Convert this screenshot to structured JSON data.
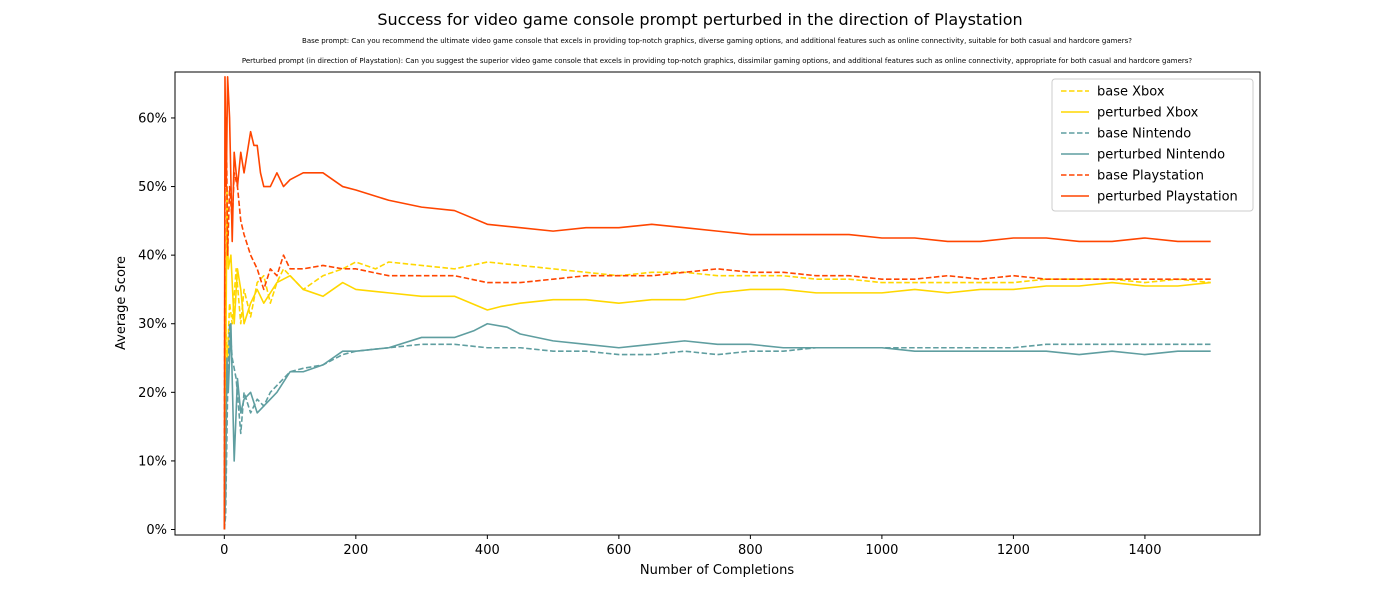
{
  "chart_data": {
    "type": "line",
    "title": "Success for video game console prompt perturbed in the direction of Playstation",
    "subtitle_base": "Base prompt: Can you recommend the ultimate video game console that excels in providing top-notch graphics, diverse gaming options, and additional features such as online connectivity, suitable for both casual and hardcore gamers?",
    "subtitle_perturbed": "Perturbed prompt (in direction of Playstation): Can you suggest the superior video game console that excels in providing top-notch graphics, dissimilar gaming options, and additional features such as online connectivity, appropriate for both casual and hardcore gamers?",
    "xlabel": "Number of Completions",
    "ylabel": "Average Score",
    "xlim": [
      -75,
      1575
    ],
    "ylim": [
      -0.008,
      0.667
    ],
    "xticks": [
      0,
      200,
      400,
      600,
      800,
      1000,
      1200,
      1400
    ],
    "xtick_labels": [
      "0",
      "200",
      "400",
      "600",
      "800",
      "1000",
      "1200",
      "1400"
    ],
    "yticks": [
      0,
      0.1,
      0.2,
      0.3,
      0.4,
      0.5,
      0.6
    ],
    "ytick_labels": [
      "0%",
      "10%",
      "20%",
      "30%",
      "40%",
      "50%",
      "60%"
    ],
    "legend_position": "top-right",
    "grid": false,
    "series": [
      {
        "name": "base Xbox",
        "color": "#FFD700",
        "dash": true,
        "points": [
          [
            0,
            0
          ],
          [
            2,
            0.3
          ],
          [
            5,
            0.25
          ],
          [
            8,
            0.33
          ],
          [
            12,
            0.3
          ],
          [
            18,
            0.38
          ],
          [
            25,
            0.3
          ],
          [
            30,
            0.35
          ],
          [
            40,
            0.31
          ],
          [
            50,
            0.36
          ],
          [
            60,
            0.37
          ],
          [
            70,
            0.33
          ],
          [
            80,
            0.36
          ],
          [
            90,
            0.38
          ],
          [
            100,
            0.37
          ],
          [
            120,
            0.35
          ],
          [
            150,
            0.37
          ],
          [
            180,
            0.38
          ],
          [
            200,
            0.39
          ],
          [
            230,
            0.38
          ],
          [
            250,
            0.39
          ],
          [
            300,
            0.385
          ],
          [
            350,
            0.38
          ],
          [
            400,
            0.39
          ],
          [
            450,
            0.385
          ],
          [
            500,
            0.38
          ],
          [
            550,
            0.375
          ],
          [
            600,
            0.37
          ],
          [
            650,
            0.375
          ],
          [
            700,
            0.375
          ],
          [
            750,
            0.37
          ],
          [
            800,
            0.37
          ],
          [
            850,
            0.37
          ],
          [
            900,
            0.365
          ],
          [
            950,
            0.365
          ],
          [
            1000,
            0.36
          ],
          [
            1050,
            0.36
          ],
          [
            1100,
            0.36
          ],
          [
            1150,
            0.36
          ],
          [
            1200,
            0.36
          ],
          [
            1250,
            0.365
          ],
          [
            1300,
            0.365
          ],
          [
            1350,
            0.365
          ],
          [
            1400,
            0.36
          ],
          [
            1450,
            0.365
          ],
          [
            1500,
            0.36
          ]
        ]
      },
      {
        "name": "perturbed Xbox",
        "color": "#FFD700",
        "dash": false,
        "points": [
          [
            0,
            0
          ],
          [
            2,
            0.2
          ],
          [
            4,
            0.5
          ],
          [
            6,
            0.38
          ],
          [
            10,
            0.4
          ],
          [
            15,
            0.3
          ],
          [
            20,
            0.38
          ],
          [
            25,
            0.35
          ],
          [
            30,
            0.3
          ],
          [
            40,
            0.33
          ],
          [
            50,
            0.35
          ],
          [
            60,
            0.33
          ],
          [
            80,
            0.36
          ],
          [
            100,
            0.37
          ],
          [
            120,
            0.35
          ],
          [
            150,
            0.34
          ],
          [
            180,
            0.36
          ],
          [
            200,
            0.35
          ],
          [
            250,
            0.345
          ],
          [
            300,
            0.34
          ],
          [
            350,
            0.34
          ],
          [
            400,
            0.32
          ],
          [
            420,
            0.325
          ],
          [
            450,
            0.33
          ],
          [
            500,
            0.335
          ],
          [
            550,
            0.335
          ],
          [
            600,
            0.33
          ],
          [
            650,
            0.335
          ],
          [
            700,
            0.335
          ],
          [
            750,
            0.345
          ],
          [
            800,
            0.35
          ],
          [
            850,
            0.35
          ],
          [
            900,
            0.345
          ],
          [
            950,
            0.345
          ],
          [
            1000,
            0.345
          ],
          [
            1050,
            0.35
          ],
          [
            1100,
            0.345
          ],
          [
            1150,
            0.35
          ],
          [
            1200,
            0.35
          ],
          [
            1250,
            0.355
          ],
          [
            1300,
            0.355
          ],
          [
            1350,
            0.36
          ],
          [
            1400,
            0.355
          ],
          [
            1450,
            0.355
          ],
          [
            1500,
            0.36
          ]
        ]
      },
      {
        "name": "base Nintendo",
        "color": "#5F9EA0",
        "dash": true,
        "points": [
          [
            0,
            0
          ],
          [
            2,
            0.02
          ],
          [
            5,
            0.2
          ],
          [
            8,
            0.3
          ],
          [
            12,
            0.25
          ],
          [
            18,
            0.22
          ],
          [
            25,
            0.14
          ],
          [
            30,
            0.2
          ],
          [
            40,
            0.17
          ],
          [
            50,
            0.19
          ],
          [
            60,
            0.18
          ],
          [
            70,
            0.2
          ],
          [
            80,
            0.21
          ],
          [
            90,
            0.22
          ],
          [
            100,
            0.23
          ],
          [
            120,
            0.235
          ],
          [
            150,
            0.24
          ],
          [
            180,
            0.255
          ],
          [
            200,
            0.26
          ],
          [
            250,
            0.265
          ],
          [
            300,
            0.27
          ],
          [
            350,
            0.27
          ],
          [
            400,
            0.265
          ],
          [
            450,
            0.265
          ],
          [
            500,
            0.26
          ],
          [
            550,
            0.26
          ],
          [
            600,
            0.255
          ],
          [
            650,
            0.255
          ],
          [
            700,
            0.26
          ],
          [
            750,
            0.255
          ],
          [
            800,
            0.26
          ],
          [
            850,
            0.26
          ],
          [
            900,
            0.265
          ],
          [
            950,
            0.265
          ],
          [
            1000,
            0.265
          ],
          [
            1050,
            0.265
          ],
          [
            1100,
            0.265
          ],
          [
            1150,
            0.265
          ],
          [
            1200,
            0.265
          ],
          [
            1250,
            0.27
          ],
          [
            1300,
            0.27
          ],
          [
            1350,
            0.27
          ],
          [
            1400,
            0.27
          ],
          [
            1450,
            0.27
          ],
          [
            1500,
            0.27
          ]
        ]
      },
      {
        "name": "perturbed Nintendo",
        "color": "#5F9EA0",
        "dash": false,
        "points": [
          [
            0,
            0
          ],
          [
            2,
            0.05
          ],
          [
            4,
            0.25
          ],
          [
            6,
            0.2
          ],
          [
            10,
            0.3
          ],
          [
            15,
            0.1
          ],
          [
            20,
            0.22
          ],
          [
            25,
            0.17
          ],
          [
            30,
            0.19
          ],
          [
            40,
            0.2
          ],
          [
            50,
            0.17
          ],
          [
            60,
            0.18
          ],
          [
            70,
            0.19
          ],
          [
            80,
            0.2
          ],
          [
            100,
            0.23
          ],
          [
            120,
            0.23
          ],
          [
            150,
            0.24
          ],
          [
            180,
            0.26
          ],
          [
            200,
            0.26
          ],
          [
            250,
            0.265
          ],
          [
            300,
            0.28
          ],
          [
            350,
            0.28
          ],
          [
            380,
            0.29
          ],
          [
            400,
            0.3
          ],
          [
            430,
            0.295
          ],
          [
            450,
            0.285
          ],
          [
            500,
            0.275
          ],
          [
            550,
            0.27
          ],
          [
            600,
            0.265
          ],
          [
            650,
            0.27
          ],
          [
            700,
            0.275
          ],
          [
            750,
            0.27
          ],
          [
            800,
            0.27
          ],
          [
            850,
            0.265
          ],
          [
            900,
            0.265
          ],
          [
            950,
            0.265
          ],
          [
            1000,
            0.265
          ],
          [
            1050,
            0.26
          ],
          [
            1100,
            0.26
          ],
          [
            1150,
            0.26
          ],
          [
            1200,
            0.26
          ],
          [
            1250,
            0.26
          ],
          [
            1300,
            0.255
          ],
          [
            1350,
            0.26
          ],
          [
            1400,
            0.255
          ],
          [
            1450,
            0.26
          ],
          [
            1500,
            0.26
          ]
        ]
      },
      {
        "name": "base Playstation",
        "color": "#FF4500",
        "dash": true,
        "points": [
          [
            0,
            0
          ],
          [
            1,
            0.5
          ],
          [
            3,
            0.6
          ],
          [
            5,
            0.4
          ],
          [
            8,
            0.5
          ],
          [
            12,
            0.45
          ],
          [
            15,
            0.52
          ],
          [
            20,
            0.5
          ],
          [
            25,
            0.45
          ],
          [
            30,
            0.43
          ],
          [
            40,
            0.4
          ],
          [
            50,
            0.38
          ],
          [
            60,
            0.35
          ],
          [
            70,
            0.38
          ],
          [
            80,
            0.37
          ],
          [
            90,
            0.4
          ],
          [
            100,
            0.38
          ],
          [
            120,
            0.38
          ],
          [
            150,
            0.385
          ],
          [
            180,
            0.38
          ],
          [
            200,
            0.38
          ],
          [
            250,
            0.37
          ],
          [
            300,
            0.37
          ],
          [
            350,
            0.37
          ],
          [
            400,
            0.36
          ],
          [
            450,
            0.36
          ],
          [
            500,
            0.365
          ],
          [
            550,
            0.37
          ],
          [
            600,
            0.37
          ],
          [
            650,
            0.37
          ],
          [
            700,
            0.375
          ],
          [
            750,
            0.38
          ],
          [
            800,
            0.375
          ],
          [
            850,
            0.375
          ],
          [
            900,
            0.37
          ],
          [
            950,
            0.37
          ],
          [
            1000,
            0.365
          ],
          [
            1050,
            0.365
          ],
          [
            1100,
            0.37
          ],
          [
            1150,
            0.365
          ],
          [
            1200,
            0.37
          ],
          [
            1250,
            0.365
          ],
          [
            1300,
            0.365
          ],
          [
            1350,
            0.365
          ],
          [
            1400,
            0.365
          ],
          [
            1450,
            0.365
          ],
          [
            1500,
            0.365
          ]
        ]
      },
      {
        "name": "perturbed Playstation",
        "color": "#FF4500",
        "dash": false,
        "points": [
          [
            0,
            0
          ],
          [
            1,
            0.66
          ],
          [
            3,
            0.5
          ],
          [
            5,
            0.66
          ],
          [
            8,
            0.6
          ],
          [
            12,
            0.42
          ],
          [
            15,
            0.55
          ],
          [
            20,
            0.5
          ],
          [
            25,
            0.55
          ],
          [
            30,
            0.52
          ],
          [
            35,
            0.55
          ],
          [
            40,
            0.58
          ],
          [
            45,
            0.56
          ],
          [
            50,
            0.56
          ],
          [
            55,
            0.52
          ],
          [
            60,
            0.5
          ],
          [
            70,
            0.5
          ],
          [
            80,
            0.52
          ],
          [
            90,
            0.5
          ],
          [
            100,
            0.51
          ],
          [
            120,
            0.52
          ],
          [
            150,
            0.52
          ],
          [
            180,
            0.5
          ],
          [
            200,
            0.495
          ],
          [
            250,
            0.48
          ],
          [
            300,
            0.47
          ],
          [
            350,
            0.465
          ],
          [
            400,
            0.445
          ],
          [
            450,
            0.44
          ],
          [
            500,
            0.435
          ],
          [
            550,
            0.44
          ],
          [
            600,
            0.44
          ],
          [
            650,
            0.445
          ],
          [
            700,
            0.44
          ],
          [
            750,
            0.435
          ],
          [
            800,
            0.43
          ],
          [
            850,
            0.43
          ],
          [
            900,
            0.43
          ],
          [
            950,
            0.43
          ],
          [
            1000,
            0.425
          ],
          [
            1050,
            0.425
          ],
          [
            1100,
            0.42
          ],
          [
            1150,
            0.42
          ],
          [
            1200,
            0.425
          ],
          [
            1250,
            0.425
          ],
          [
            1300,
            0.42
          ],
          [
            1350,
            0.42
          ],
          [
            1400,
            0.425
          ],
          [
            1450,
            0.42
          ],
          [
            1500,
            0.42
          ]
        ]
      }
    ]
  }
}
